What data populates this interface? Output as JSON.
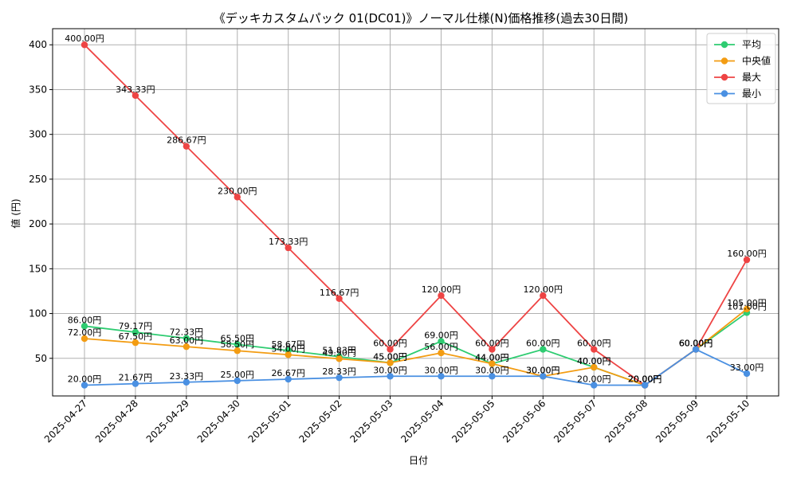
{
  "chart_data": {
    "type": "line",
    "title": "《デッキカスタムパック 01(DC01)》ノーマル仕様(N)価格推移(過去30日間)",
    "xlabel": "日付",
    "ylabel": "値 (円)",
    "ylim": [
      0,
      420
    ],
    "yticks": [
      50,
      100,
      150,
      200,
      250,
      300,
      350,
      400
    ],
    "grid": true,
    "legend_position": "top-right",
    "value_suffix": "円",
    "x": [
      "2025-04-27",
      "2025-04-28",
      "2025-04-29",
      "2025-04-30",
      "2025-05-01",
      "2025-05-02",
      "2025-05-03",
      "2025-05-04",
      "2025-05-05",
      "2025-05-06",
      "2025-05-07",
      "2025-05-08",
      "2025-05-09",
      "2025-05-10"
    ],
    "series": [
      {
        "name": "平均",
        "color": "#2ecc71",
        "values": [
          86.0,
          79.17,
          72.33,
          65.5,
          58.67,
          51.83,
          45.0,
          69.0,
          44.0,
          60.0,
          40.0,
          20.0,
          60.0,
          101.0
        ]
      },
      {
        "name": "中央値",
        "color": "#f39c12",
        "values": [
          72.0,
          67.5,
          63.0,
          58.5,
          54.0,
          49.5,
          45.0,
          56.0,
          44.0,
          30.0,
          40.0,
          20.0,
          60.0,
          105.0
        ]
      },
      {
        "name": "最大",
        "color": "#ee4444",
        "values": [
          400.0,
          343.33,
          286.67,
          230.0,
          173.33,
          116.67,
          60.0,
          120.0,
          60.0,
          120.0,
          60.0,
          20.0,
          60.0,
          160.0
        ]
      },
      {
        "name": "最小",
        "color": "#4a90e2",
        "values": [
          20.0,
          21.67,
          23.33,
          25.0,
          26.67,
          28.33,
          30.0,
          30.0,
          30.0,
          30.0,
          20.0,
          20.0,
          60.0,
          33.0
        ]
      }
    ]
  }
}
